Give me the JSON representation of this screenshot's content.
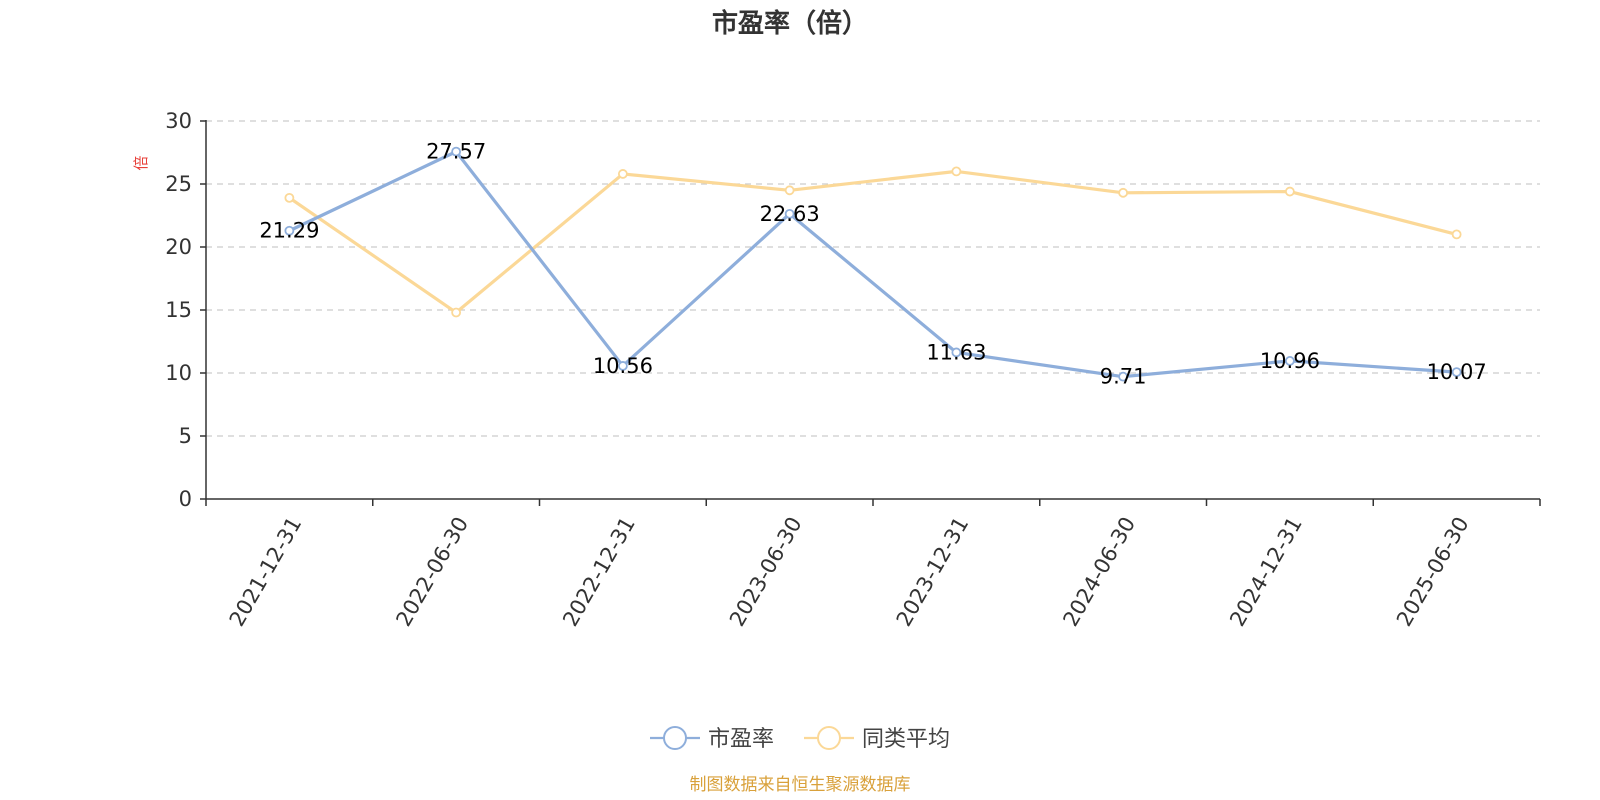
{
  "chart_data": {
    "type": "line",
    "title": "市盈率（倍）",
    "ylabel": "倍",
    "categories": [
      "2021-12-31",
      "2022-06-30",
      "2022-12-31",
      "2023-06-30",
      "2023-12-31",
      "2024-06-30",
      "2024-12-31",
      "2025-06-30"
    ],
    "ylim": [
      0,
      30
    ],
    "yticks": [
      0,
      5,
      10,
      15,
      20,
      25,
      30
    ],
    "grid": true,
    "legend_position": "bottom",
    "series": [
      {
        "name": "市盈率",
        "color": "#8eaedb",
        "values": [
          21.29,
          27.57,
          10.56,
          22.63,
          11.63,
          9.71,
          10.96,
          10.07
        ],
        "show_labels": true
      },
      {
        "name": "同类平均",
        "color": "#fbd897",
        "values": [
          23.9,
          14.8,
          25.8,
          24.5,
          26.0,
          24.3,
          24.4,
          21.0
        ],
        "show_labels": false
      }
    ]
  },
  "colors": {
    "unit_label": "#e8413a",
    "source": "#d9a13b",
    "axis": "#333333",
    "grid": "#cccccc"
  },
  "source_note": "制图数据来自恒生聚源数据库"
}
